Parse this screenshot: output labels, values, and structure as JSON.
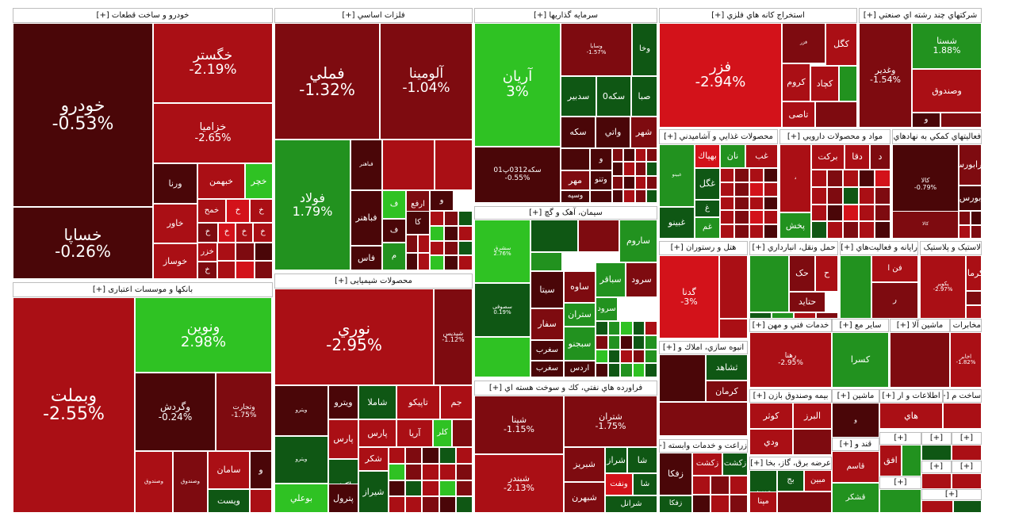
{
  "colors": {
    "dark": "#4a0608",
    "mid_dark": "#7e0b10",
    "red": "#aa0f15",
    "bright_red": "#d3121a",
    "dark_green": "#0f5714",
    "green": "#22921f",
    "bright_green": "#2fc223"
  },
  "chart_data": {
    "type": "treemap",
    "sectors": [
      {
        "name": "خودرو و ساخت قطعات [+]",
        "items": [
          {
            "name": "خودرو",
            "change": "-0.53%"
          },
          {
            "name": "خساپا",
            "change": "-0.26%"
          },
          {
            "name": "خگستر",
            "change": "-2.19%"
          },
          {
            "name": "خزامیا",
            "change": "-2.65%"
          },
          {
            "name": "ورنا"
          },
          {
            "name": "خبهمن"
          },
          {
            "name": "خچر"
          },
          {
            "name": "خاور"
          },
          {
            "name": "خمح"
          },
          {
            "name": "خ"
          },
          {
            "name": "خوساز"
          },
          {
            "name": "خزر"
          }
        ]
      },
      {
        "name": "بانکها و موسسات اعتباری [+]",
        "items": [
          {
            "name": "وبملت",
            "change": "-2.55%"
          },
          {
            "name": "ونوین",
            "change": "2.98%"
          },
          {
            "name": "وگردش",
            "change": "-0.24%"
          },
          {
            "name": "وتجارت",
            "change": "-1.75%"
          },
          {
            "name": "سامان"
          },
          {
            "name": "ویست"
          },
          {
            "name": "و"
          }
        ]
      },
      {
        "name": "فلزات اساسی [+]",
        "items": [
          {
            "name": "فملي",
            "change": "-1.32%"
          },
          {
            "name": "آلومینا",
            "change": "-1.04%"
          },
          {
            "name": "فولاد",
            "change": "1.79%"
          },
          {
            "name": "فباهنر"
          },
          {
            "name": "ارفع"
          },
          {
            "name": "فاس"
          },
          {
            "name": "ف"
          },
          {
            "name": "کا"
          },
          {
            "name": "م"
          }
        ]
      },
      {
        "name": "محصولات شیمیایی [+]",
        "items": [
          {
            "name": "نوري",
            "change": "-2.95%"
          },
          {
            "name": "شپدیس",
            "change": "-1.12%"
          },
          {
            "name": "ويترو"
          },
          {
            "name": "شاملا"
          },
          {
            "name": "تاپیکو"
          },
          {
            "name": "جم"
          },
          {
            "name": "پارس"
          },
          {
            "name": "آریا"
          },
          {
            "name": "کلر"
          },
          {
            "name": "پاکشو"
          },
          {
            "name": "شکر"
          },
          {
            "name": "شیراز"
          },
          {
            "name": "بوعلي"
          },
          {
            "name": "پترول"
          }
        ]
      },
      {
        "name": "سرمایه گذاریها [+]",
        "items": [
          {
            "name": "آریان",
            "change": "3%"
          },
          {
            "name": "وسایا",
            "change": "-1.57%"
          },
          {
            "name": "وخا"
          },
          {
            "name": "سدبیر"
          },
          {
            "name": "سکه0"
          },
          {
            "name": "صبا"
          },
          {
            "name": "سکه"
          },
          {
            "name": "واتي"
          },
          {
            "name": "شهر"
          },
          {
            "name": "مهر"
          },
          {
            "name": "وتنو"
          },
          {
            "name": "وسپه"
          },
          {
            "name": "سکه0312پ01",
            "change": "-0.55%"
          }
        ]
      },
      {
        "name": "سیمان، آهک و گچ [+]",
        "items": [
          {
            "name": "سشرق",
            "change": "2.76%"
          },
          {
            "name": "سصوفی",
            "change": "0.19%"
          },
          {
            "name": "ساروم"
          },
          {
            "name": "سیتا"
          },
          {
            "name": "ساوه"
          },
          {
            "name": "سباقر"
          },
          {
            "name": "سرود"
          },
          {
            "name": "سفار"
          },
          {
            "name": "ستران"
          },
          {
            "name": "سبجنو"
          },
          {
            "name": "سغرب"
          },
          {
            "name": "اردس"
          }
        ]
      },
      {
        "name": "فراورده هاي نفتي، كك و سوخت هسته اي [+]",
        "items": [
          {
            "name": "شپنا",
            "change": "-1.15%"
          },
          {
            "name": "شبندر",
            "change": "-2.13%"
          },
          {
            "name": "شتران",
            "change": "-1.75%"
          },
          {
            "name": "شراز"
          },
          {
            "name": "شبریز"
          },
          {
            "name": "شبهرن"
          },
          {
            "name": "ونفت"
          },
          {
            "name": "شرانل"
          },
          {
            "name": "شا"
          }
        ]
      },
      {
        "name": "استخراج كانه هاي فلزي [+]",
        "items": [
          {
            "name": "فزر",
            "change": "-2.94%"
          },
          {
            "name": "کگل"
          },
          {
            "name": "کروم"
          },
          {
            "name": "کچاد"
          },
          {
            "name": "تاصی"
          }
        ]
      },
      {
        "name": "شرکتهاي چند رشته اي صنعتي [+]",
        "items": [
          {
            "name": "شستا",
            "change": "1.88%"
          },
          {
            "name": "وغدیر",
            "change": "-1.54%"
          },
          {
            "name": "وصندوق"
          },
          {
            "name": "و"
          }
        ]
      },
      {
        "name": "محصولات غذايي و آشاميدني [+]",
        "items": [
          {
            "name": "بهپاك"
          },
          {
            "name": "نان"
          },
          {
            "name": "غب"
          },
          {
            "name": "غگل"
          },
          {
            "name": "غ"
          },
          {
            "name": "غبینو"
          },
          {
            "name": "غم"
          }
        ]
      },
      {
        "name": "مواد و محصولات دارويي [+]",
        "items": [
          {
            "name": "برکت"
          },
          {
            "name": "دقا"
          },
          {
            "name": "د"
          },
          {
            "name": "پخش"
          }
        ]
      },
      {
        "name": "فعالیتهاي كمكي به نهادهاي [+]",
        "items": [
          {
            "name": "کالا",
            "change": "-0.79%"
          },
          {
            "name": "فرابورس"
          },
          {
            "name": "بورس"
          }
        ]
      },
      {
        "name": "هتل و رستوران [+]",
        "items": [
          {
            "name": "گدنا",
            "change": "-3%"
          }
        ]
      },
      {
        "name": "حمل ونقل، انبارداري [+]",
        "items": [
          {
            "name": "حک"
          },
          {
            "name": "حتاید"
          },
          {
            "name": "ح"
          }
        ]
      },
      {
        "name": "رايانه و فعاليت‌هاي [+]",
        "items": [
          {
            "name": "فن ا"
          },
          {
            "name": "ر"
          }
        ]
      },
      {
        "name": "لاستیک و پلاستیک [+]",
        "items": [
          {
            "name": "پکرمان"
          },
          {
            "name": "پکوير",
            "change": "-2.97%"
          }
        ]
      },
      {
        "name": "خدمات فني و مهن [+]",
        "items": [
          {
            "name": "رهنا",
            "change": "-2.95%"
          }
        ]
      },
      {
        "name": "سایر مع [+]",
        "items": [
          {
            "name": "کسرا"
          }
        ]
      },
      {
        "name": "ماشین آلا [+]",
        "items": []
      },
      {
        "name": "مخابرات [+]",
        "items": [
          {
            "name": "اخابر",
            "change": "-1.82%"
          }
        ]
      },
      {
        "name": "انبوه سازي، املاك و [+]",
        "items": [
          {
            "name": "ثشاهد"
          },
          {
            "name": "کرمان"
          }
        ]
      },
      {
        "name": "بیمه وصندوق بازن [+]",
        "items": [
          {
            "name": "کوثر"
          },
          {
            "name": "البرز"
          },
          {
            "name": "ودي"
          }
        ]
      },
      {
        "name": "زراعت و خدمات وابسته [+]",
        "items": [
          {
            "name": "زکشت"
          },
          {
            "name": "زفکا"
          }
        ]
      },
      {
        "name": "عرضه برق، گاز، بخا [+]",
        "items": [
          {
            "name": "مبین"
          },
          {
            "name": "بج"
          },
          {
            "name": "مپنا"
          }
        ]
      },
      {
        "name": "قند و [+]",
        "items": [
          {
            "name": "قاسم"
          },
          {
            "name": "قشکر"
          }
        ]
      }
    ]
  },
  "labels": {
    "s_car": "خودرو و ساخت قطعات [+]",
    "s_bank": "بانکها و موسسات اعتباری [+]",
    "s_metal": "فلزات اساسي [+]",
    "s_chem": "محصولات شیمیایی [+]",
    "s_invest": "سرمایه گذاریها [+]",
    "s_cement": "سیمان، آهک و گچ [+]",
    "s_oil": "فراورده هاي نفتي، كك و سوخت هسته اي [+]",
    "s_mine": "استخراج كانه هاي فلزي [+]",
    "s_multi": "شرکتهاي چند رشته اي صنعتي [+]",
    "s_food": "محصولات غذايي و آشاميدني [+]",
    "s_drug": "مواد و محصولات دارويي [+]",
    "s_aux": "فعالیتهاي كمكي به نهادهاي [+]",
    "s_hotel": "هتل و رستوران [+]",
    "s_trans": "حمل ونقل، انبارداري [+]",
    "s_comp": "رايانه و فعاليت‌هاي [+]",
    "s_tire": "لاستیک و پلاستیک [+]",
    "s_tech": "خدمات فني و مهن [+]",
    "s_other": "سایر مع [+]",
    "s_mach": "ماشین آلا [+]",
    "s_tele": "مخابرات [+]",
    "s_build": "انبوه سازي، املاك و [+]",
    "s_insur": "بیمه وصندوق بازن [+]",
    "s_agri": "زراعت و خدمات وابسته [+]",
    "s_power": "عرضه برق، گاز، بخا [+]",
    "s_sugar": "قند و [+]",
    "s_mach2": "ماشین [+]",
    "s_info": "اطلاعات و ار [+]",
    "s_build2": "ساخت م [+]",
    "s_plus": "[+]",
    "n_khodro": "خودرو",
    "p_khodro": "-0.53%",
    "n_khsapa": "خساپا",
    "p_khsapa": "-0.26%",
    "n_khgostar": "خگستر",
    "p_khgostar": "-2.19%",
    "n_khzamia": "خزامیا",
    "p_khzamia": "-2.65%",
    "n_varna": "ورنا",
    "n_khbahman": "خبهمن",
    "n_khchar": "خچر",
    "n_khavar": "خاور",
    "n_khamh": "خمح",
    "n_kh": "خ",
    "n_khosaz": "خوساز",
    "n_khazar": "خزر",
    "n_vbmellat": "وبملت",
    "p_vbmellat": "-2.55%",
    "n_vnovin": "ونوین",
    "p_vnovin": "2.98%",
    "n_vgardesh": "وگردش",
    "p_vgardesh": "-0.24%",
    "n_vtejarat": "وتجارت",
    "p_vtejarat": "-1.75%",
    "n_saman": "سامان",
    "n_vpost": "ویست",
    "n_v": "و",
    "n_fameli": "فملي",
    "p_fameli": "-1.32%",
    "n_alumina": "آلومینا",
    "p_alumina": "-1.04%",
    "n_foolad": "فولاد",
    "p_foolad": "1.79%",
    "n_fbahonar": "فباهنر",
    "n_arfa": "ارفع",
    "n_fas": "فاس",
    "n_f": "ف",
    "n_ka": "کا",
    "n_m": "م",
    "n_noori": "نوري",
    "p_noori": "-2.95%",
    "n_shpadis": "شپدیس",
    "p_shpadis": "-1.12%",
    "n_vitro": "ويترو",
    "n_shamla": "شاملا",
    "n_tapiko": "تاپیکو",
    "n_jam": "جم",
    "n_pars": "پارس",
    "n_arya": "آریا",
    "n_kelar": "کلر",
    "n_pakshu": "پاکشو",
    "n_shekar": "شکر",
    "n_shiraz": "شیراز",
    "n_boali": "بوعلي",
    "n_petrol": "پترول",
    "n_aryan": "آریان",
    "p_aryan": "3%",
    "n_vsaya": "وسایا",
    "p_vsaya": "-1.57%",
    "n_vkha": "وخا",
    "n_sadbir": "سدبیر",
    "n_sekke0": "سکه0",
    "n_saba": "صبا",
    "n_sekke": "سکه",
    "n_vati": "واتي",
    "n_shahr": "شهر",
    "n_mehr": "مهر",
    "n_vtoo": "وتنو",
    "n_vsepa": "وسپه",
    "n_sekke01": "سکه0312پ01",
    "p_sekke01": "-0.55%",
    "n_sshargh": "سشرق",
    "p_sshargh": "2.76%",
    "n_ssoofi": "سصوفی",
    "p_ssoofi": "0.19%",
    "n_sarum": "ساروم",
    "n_sita": "سیتا",
    "n_saveh": "ساوه",
    "n_sbagher": "سباقر",
    "n_sarod": "سرود",
    "n_sfar": "سفار",
    "n_setran": "ستران",
    "n_sbjno": "سبجنو",
    "n_sgharb": "سغرب",
    "n_ardas": "اردس",
    "n_shepna": "شپنا",
    "p_shepna": "-1.15%",
    "n_shbandar": "شبندر",
    "p_shbandar": "-2.13%",
    "n_shtran": "شتران",
    "p_shtran": "-1.75%",
    "n_shraz": "شراز",
    "n_shbriz": "شبریز",
    "n_shbhrn": "شبهرن",
    "n_vnaft": "ونفت",
    "n_shranl": "شرانل",
    "n_sha": "شا",
    "n_fazar": "فزر",
    "p_fazar": "-2.94%",
    "n_kgol": "کگل",
    "n_krom": "کروم",
    "n_kchad": "کچاد",
    "n_tasi": "تاصی",
    "n_shasta": "شستا",
    "p_shasta": "1.88%",
    "n_vghadir": "وغدیر",
    "p_vghadir": "-1.54%",
    "n_vsandogh": "وصندوق",
    "n_behpak": "بهپاك",
    "n_nan": "نان",
    "n_ghab": "غب",
    "n_ghgol": "غگل",
    "n_gh": "غ",
    "n_ghbino": "غبینو",
    "n_gham": "غم",
    "n_barkat": "برکت",
    "n_dgha": "دقا",
    "n_d": "د",
    "n_pakhsh": "پخش",
    "n_kala": "کالا",
    "p_kala": "-0.79%",
    "n_farabors": "فرابورس",
    "n_bors": "بورس",
    "n_gadna": "گدنا",
    "p_gadna": "-3%",
    "n_hk": "حک",
    "n_htaid": "حتاید",
    "n_h": "ح",
    "n_fana": "فن ا",
    "n_r": "ر",
    "n_pakarman": "پکرمان",
    "n_pakvir": "پکوير",
    "p_pakvir": "-2.97%",
    "n_rahna": "رهنا",
    "p_rahna": "-2.95%",
    "n_kasra": "کسرا",
    "n_akhaber": "اخابر",
    "p_akhaber": "-1.82%",
    "n_sashahed": "ثشاهد",
    "n_kerman": "کرمان",
    "n_kowsar": "کوثر",
    "n_alborz": "البرز",
    "n_vdi": "ودي",
    "n_zkesht": "زکشت",
    "n_zfka": "زفکا",
    "n_mobin": "مبین",
    "n_bj": "بج",
    "n_mapna": "مپنا",
    "n_ghasem": "قاسم",
    "n_ghshekar": "قشکر",
    "n_afgh": "افق",
    "n_ha": "هاي"
  }
}
